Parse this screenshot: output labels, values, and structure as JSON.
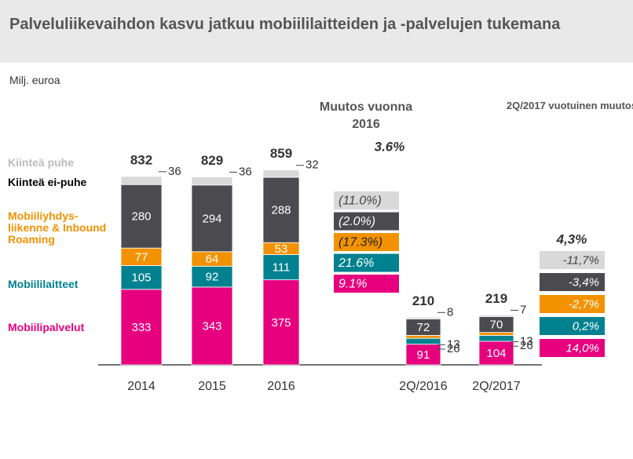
{
  "chart_data": {
    "type": "stacked_bar",
    "title": "Palveluliikevaihdon kasvu jatkuu mobiililaitteiden ja -palvelujen tukemana",
    "subtitle": "Milj. euroa",
    "categories": [
      "2014",
      "2015",
      "2016",
      "2Q/2016",
      "2Q/2017"
    ],
    "series": [
      {
        "name": "Mobiilipalvelut",
        "color": "#e6007e",
        "values": [
          333,
          343,
          375,
          91,
          104
        ]
      },
      {
        "name": "Mobiililaitteet",
        "color": "#00818f",
        "values": [
          105,
          92,
          111,
          26,
          26
        ]
      },
      {
        "name": "Mobiiliyhdys-liikenne & Inbound Roaming",
        "color": "#f39200",
        "values": [
          77,
          64,
          53,
          13,
          13
        ]
      },
      {
        "name": "Kiinteä ei-puhe",
        "color": "#4a4a4f",
        "values": [
          280,
          294,
          288,
          72,
          70
        ]
      },
      {
        "name": "Kiinteä puhe",
        "color": "#d9d9d9",
        "values": [
          36,
          36,
          32,
          8,
          7
        ]
      }
    ],
    "totals": [
      832,
      829,
      859,
      210,
      219
    ],
    "change_groups": [
      {
        "title": "Muutos vuonna 2016",
        "total": "3.6%",
        "changes": [
          "(11.0%)",
          "(2.0%)",
          "(17.3%)",
          "21.6%",
          "9.1%"
        ]
      },
      {
        "title": "2Q/2017 vuotuinen muutos",
        "total": "4,3%",
        "changes": [
          "-11,7%",
          "-3,4%",
          "-2,7%",
          "0,2%",
          "14,0%"
        ]
      }
    ]
  }
}
